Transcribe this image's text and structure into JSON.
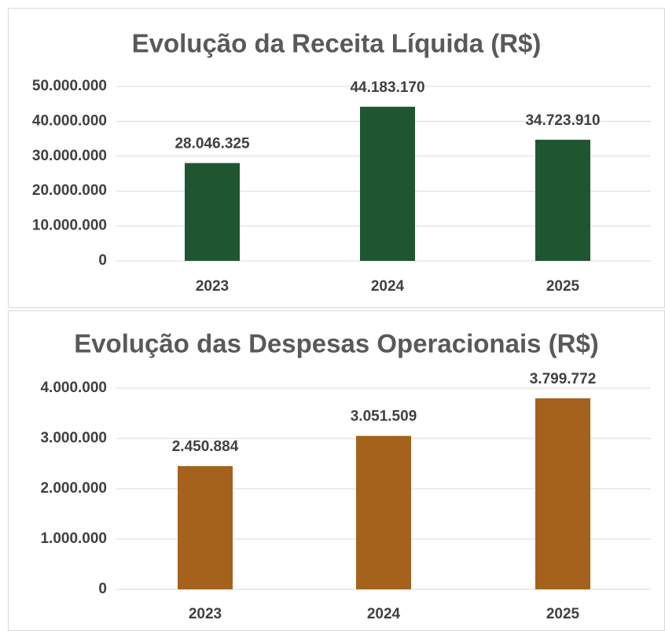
{
  "chart_data": [
    {
      "type": "bar",
      "title": "Evolução da Receita Líquida (R$)",
      "categories": [
        "2023",
        "2024",
        "2025"
      ],
      "values": [
        28046325,
        44183170,
        34723910
      ],
      "value_labels": [
        "28.046.325",
        "44.183.170",
        "34.723.910"
      ],
      "color": "#1f5631",
      "ylim": [
        0,
        50000000
      ],
      "yticks": [
        0,
        {
          "value": 10000000,
          "label": "10.000.000"
        },
        {
          "value": 20000000,
          "label": "20.000.000"
        },
        {
          "value": 30000000,
          "label": "30.000.000"
        },
        {
          "value": 40000000,
          "label": "40.000.000"
        },
        {
          "value": 50000000,
          "label": "50.000.000"
        }
      ],
      "grid": true
    },
    {
      "type": "bar",
      "title": "Evolução das Despesas Operacionais (R$)",
      "categories": [
        "2023",
        "2024",
        "2025"
      ],
      "values": [
        2450884,
        3051509,
        3799772
      ],
      "value_labels": [
        "2.450.884",
        "3.051.509",
        "3.799.772"
      ],
      "color": "#a5621c",
      "ylim": [
        0,
        4000000
      ],
      "yticks": [
        0,
        {
          "value": 1000000,
          "label": "1.000.000"
        },
        {
          "value": 2000000,
          "label": "2.000.000"
        },
        {
          "value": 3000000,
          "label": "3.000.000"
        },
        {
          "value": 4000000,
          "label": "4.000.000"
        }
      ],
      "grid": true
    }
  ]
}
